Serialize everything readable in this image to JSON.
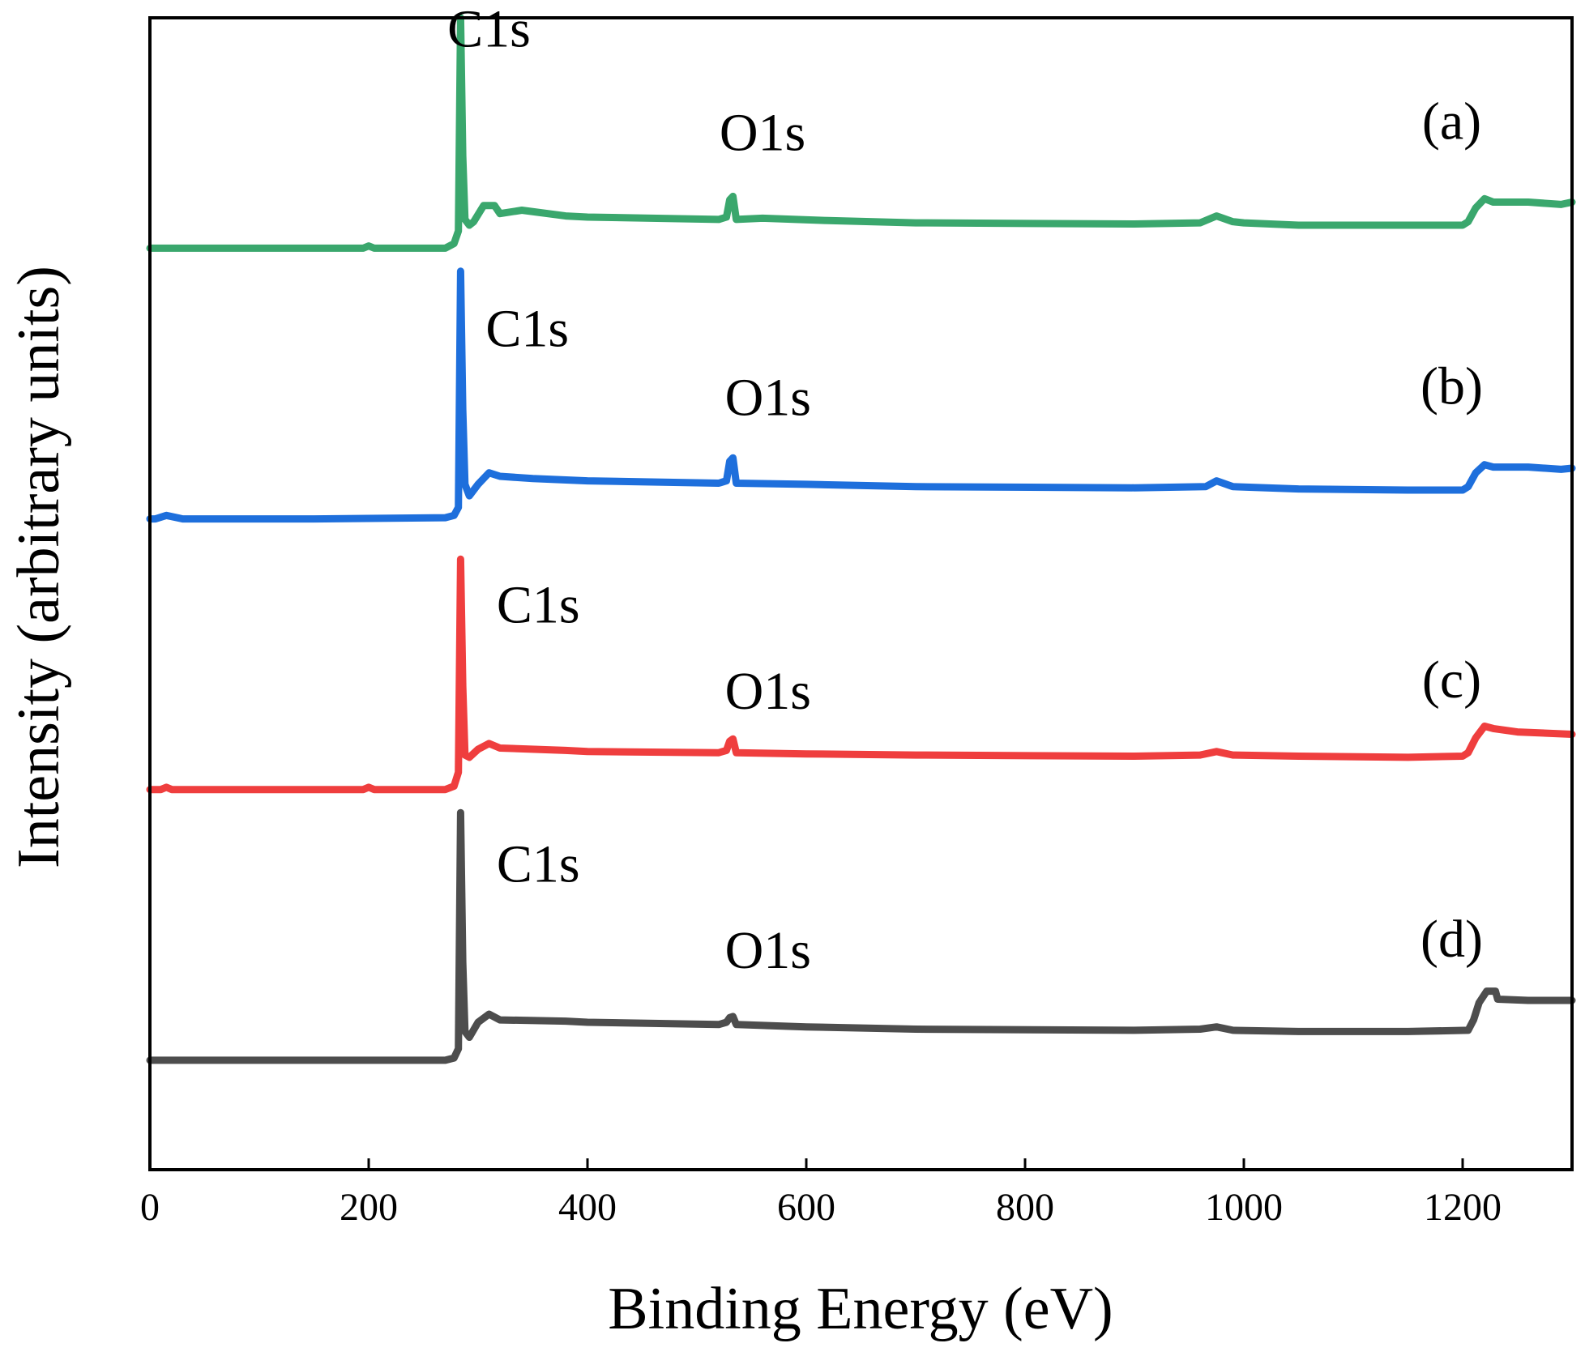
{
  "chart_data": {
    "type": "line",
    "title": "",
    "xlabel": "Binding Energy (eV)",
    "ylabel": "Intensity (arbitrary units)",
    "xlim": [
      0,
      1300
    ],
    "ylim": [
      0,
      100
    ],
    "x_ticks": [
      0,
      200,
      400,
      600,
      800,
      1000,
      1200
    ],
    "x_tick_labels": [
      "0",
      "200",
      "400",
      "600",
      "800",
      "1000",
      "1200"
    ],
    "y_ticks": [],
    "grid": false,
    "legend": "none",
    "offset_stacked": true,
    "series": [
      {
        "name": "(a)",
        "color": "#3aa76d",
        "label_x": 1190,
        "label_y": 89.5,
        "peak_labels": [
          {
            "text": "C1s",
            "x": 310,
            "y": 97.5
          },
          {
            "text": "O1s",
            "x": 560,
            "y": 88.5
          }
        ],
        "points": [
          [
            0,
            80.0
          ],
          [
            195,
            80.0
          ],
          [
            200,
            80.2
          ],
          [
            205,
            80.0
          ],
          [
            270,
            80.0
          ],
          [
            278,
            80.4
          ],
          [
            282,
            81.5
          ],
          [
            284,
            100.0
          ],
          [
            286,
            88.0
          ],
          [
            288,
            82.5
          ],
          [
            292,
            82.0
          ],
          [
            296,
            82.3
          ],
          [
            305,
            83.7
          ],
          [
            315,
            83.7
          ],
          [
            320,
            83.0
          ],
          [
            340,
            83.3
          ],
          [
            380,
            82.8
          ],
          [
            400,
            82.7
          ],
          [
            520,
            82.5
          ],
          [
            527,
            82.7
          ],
          [
            530,
            84.2
          ],
          [
            533,
            84.5
          ],
          [
            536,
            82.5
          ],
          [
            560,
            82.6
          ],
          [
            620,
            82.4
          ],
          [
            700,
            82.2
          ],
          [
            900,
            82.1
          ],
          [
            960,
            82.2
          ],
          [
            975,
            82.8
          ],
          [
            990,
            82.3
          ],
          [
            1000,
            82.2
          ],
          [
            1050,
            82.0
          ],
          [
            1150,
            82.0
          ],
          [
            1200,
            82.0
          ],
          [
            1205,
            82.3
          ],
          [
            1212,
            83.5
          ],
          [
            1220,
            84.3
          ],
          [
            1228,
            84.0
          ],
          [
            1260,
            84.0
          ],
          [
            1290,
            83.8
          ],
          [
            1300,
            84.0
          ]
        ]
      },
      {
        "name": "(b)",
        "color": "#1e6fdc",
        "label_x": 1190,
        "label_y": 66.5,
        "peak_labels": [
          {
            "text": "C1s",
            "x": 345,
            "y": 71.5
          },
          {
            "text": "O1s",
            "x": 565,
            "y": 65.5
          }
        ],
        "points": [
          [
            0,
            56.5
          ],
          [
            5,
            56.5
          ],
          [
            15,
            56.8
          ],
          [
            30,
            56.5
          ],
          [
            150,
            56.5
          ],
          [
            270,
            56.6
          ],
          [
            278,
            56.8
          ],
          [
            282,
            57.5
          ],
          [
            284,
            78.0
          ],
          [
            286,
            66.0
          ],
          [
            288,
            59.5
          ],
          [
            292,
            58.5
          ],
          [
            300,
            59.5
          ],
          [
            310,
            60.5
          ],
          [
            320,
            60.2
          ],
          [
            350,
            60.0
          ],
          [
            400,
            59.8
          ],
          [
            520,
            59.6
          ],
          [
            527,
            59.8
          ],
          [
            530,
            61.5
          ],
          [
            533,
            61.8
          ],
          [
            536,
            59.6
          ],
          [
            600,
            59.5
          ],
          [
            700,
            59.3
          ],
          [
            900,
            59.2
          ],
          [
            965,
            59.3
          ],
          [
            975,
            59.8
          ],
          [
            990,
            59.3
          ],
          [
            1050,
            59.1
          ],
          [
            1150,
            59.0
          ],
          [
            1200,
            59.0
          ],
          [
            1205,
            59.3
          ],
          [
            1212,
            60.5
          ],
          [
            1220,
            61.2
          ],
          [
            1228,
            61.0
          ],
          [
            1260,
            61.0
          ],
          [
            1290,
            60.8
          ],
          [
            1300,
            60.9
          ]
        ]
      },
      {
        "name": "(c)",
        "color": "#ef3e3e",
        "label_x": 1190,
        "label_y": 41.0,
        "peak_labels": [
          {
            "text": "C1s",
            "x": 355,
            "y": 47.5
          },
          {
            "text": "O1s",
            "x": 565,
            "y": 40.0
          }
        ],
        "points": [
          [
            0,
            33.0
          ],
          [
            10,
            33.0
          ],
          [
            15,
            33.2
          ],
          [
            20,
            33.0
          ],
          [
            195,
            33.0
          ],
          [
            200,
            33.2
          ],
          [
            205,
            33.0
          ],
          [
            270,
            33.0
          ],
          [
            278,
            33.3
          ],
          [
            282,
            34.5
          ],
          [
            284,
            53.0
          ],
          [
            286,
            42.0
          ],
          [
            288,
            36.0
          ],
          [
            292,
            35.8
          ],
          [
            300,
            36.5
          ],
          [
            310,
            37.0
          ],
          [
            320,
            36.6
          ],
          [
            380,
            36.4
          ],
          [
            400,
            36.3
          ],
          [
            520,
            36.2
          ],
          [
            527,
            36.4
          ],
          [
            530,
            37.2
          ],
          [
            533,
            37.4
          ],
          [
            536,
            36.2
          ],
          [
            600,
            36.1
          ],
          [
            700,
            36.0
          ],
          [
            900,
            35.9
          ],
          [
            960,
            36.0
          ],
          [
            975,
            36.3
          ],
          [
            990,
            36.0
          ],
          [
            1050,
            35.9
          ],
          [
            1150,
            35.8
          ],
          [
            1200,
            35.9
          ],
          [
            1205,
            36.2
          ],
          [
            1212,
            37.5
          ],
          [
            1220,
            38.5
          ],
          [
            1228,
            38.3
          ],
          [
            1250,
            38.0
          ],
          [
            1300,
            37.8
          ]
        ]
      },
      {
        "name": "(d)",
        "color": "#4d4d4d",
        "label_x": 1190,
        "label_y": 18.5,
        "peak_labels": [
          {
            "text": "C1s",
            "x": 355,
            "y": 25.0
          },
          {
            "text": "O1s",
            "x": 565,
            "y": 17.5
          }
        ],
        "points": [
          [
            0,
            9.5
          ],
          [
            150,
            9.5
          ],
          [
            270,
            9.5
          ],
          [
            278,
            9.7
          ],
          [
            282,
            10.5
          ],
          [
            284,
            31.0
          ],
          [
            286,
            18.0
          ],
          [
            288,
            12.0
          ],
          [
            292,
            11.5
          ],
          [
            300,
            12.8
          ],
          [
            310,
            13.5
          ],
          [
            320,
            13.0
          ],
          [
            380,
            12.9
          ],
          [
            400,
            12.8
          ],
          [
            520,
            12.6
          ],
          [
            527,
            12.8
          ],
          [
            530,
            13.2
          ],
          [
            533,
            13.3
          ],
          [
            536,
            12.6
          ],
          [
            600,
            12.4
          ],
          [
            700,
            12.2
          ],
          [
            900,
            12.1
          ],
          [
            960,
            12.2
          ],
          [
            975,
            12.4
          ],
          [
            990,
            12.1
          ],
          [
            1050,
            12.0
          ],
          [
            1150,
            12.0
          ],
          [
            1205,
            12.1
          ],
          [
            1210,
            13.0
          ],
          [
            1215,
            14.5
          ],
          [
            1222,
            15.5
          ],
          [
            1230,
            15.5
          ],
          [
            1232,
            14.8
          ],
          [
            1260,
            14.7
          ],
          [
            1300,
            14.7
          ]
        ]
      }
    ]
  }
}
